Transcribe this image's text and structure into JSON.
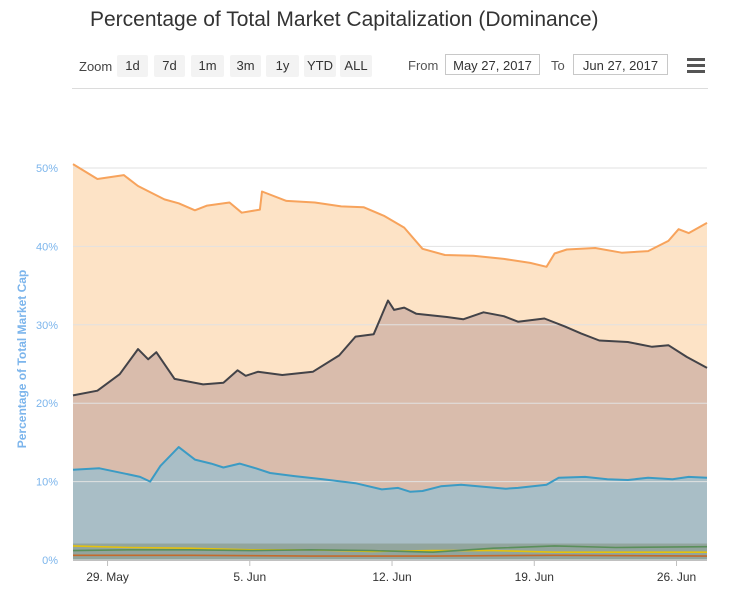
{
  "title": "Percentage of Total Market Capitalization (Dominance)",
  "toolbar": {
    "zoom_label": "Zoom",
    "zoom_buttons": [
      "1d",
      "7d",
      "1m",
      "3m",
      "1y",
      "YTD",
      "ALL"
    ],
    "from_label": "From",
    "from_value": "May 27, 2017",
    "to_label": "To",
    "to_value": "Jun 27, 2017",
    "menu_icon": "hamburger-menu-icon"
  },
  "chart_data": {
    "type": "area",
    "ylabel": "Percentage of Total Market Cap",
    "ylim": [
      0,
      50
    ],
    "y_ticks": [
      "0%",
      "10%",
      "20%",
      "30%",
      "40%",
      "50%"
    ],
    "x_tick_labels": [
      "29. May",
      "5. Jun",
      "12. Jun",
      "19. Jun",
      "26. Jun"
    ],
    "x_ticks": [
      29,
      36,
      43,
      50,
      57
    ],
    "x_range": [
      27.3,
      58.5
    ],
    "grid": true,
    "series_colors": [
      "#f7a35c",
      "#434348",
      "#3b9bc4",
      "#e4c20c",
      "#5a8f5a",
      "#c46a2c"
    ],
    "series": [
      {
        "color": "#f7a35c",
        "fill": "#fde3c6",
        "x": [
          27.3,
          28.5,
          29.8,
          30.5,
          31.8,
          32.5,
          33.3,
          33.9,
          35,
          35.6,
          36.5,
          36.6,
          37.8,
          39.2,
          40.5,
          41.6,
          42.6,
          43.2,
          43.6,
          44.5,
          45.6,
          47,
          48.5,
          49.8,
          50.6,
          51,
          51.6,
          53,
          54.3,
          55.6,
          56.6,
          57.1,
          57.6,
          58.5
        ],
        "values": [
          50.5,
          48.6,
          49.1,
          47.7,
          46,
          45.5,
          44.6,
          45.2,
          45.6,
          44.3,
          44.7,
          47,
          45.8,
          45.6,
          45.1,
          45,
          43.9,
          43,
          42.4,
          39.7,
          38.9,
          38.8,
          38.4,
          37.9,
          37.4,
          39.1,
          39.6,
          39.8,
          39.2,
          39.4,
          40.7,
          42.2,
          41.7,
          43
        ]
      },
      {
        "color": "#434348",
        "fill": "#d9bcac",
        "x": [
          27.3,
          28.5,
          29.6,
          30.5,
          31,
          31.4,
          32.3,
          33.7,
          34.7,
          35.4,
          35.8,
          36.4,
          37.6,
          39.1,
          40.4,
          41.2,
          42.1,
          42.8,
          43.1,
          43.6,
          44.2,
          45.7,
          46.5,
          47.5,
          48.5,
          49.2,
          50.5,
          51.5,
          52.3,
          53.2,
          54.6,
          55.8,
          56.6,
          57.5,
          58.5
        ],
        "values": [
          21,
          21.6,
          23.7,
          26.9,
          25.6,
          26.5,
          23.1,
          22.4,
          22.6,
          24.2,
          23.5,
          24,
          23.6,
          24,
          26.1,
          28.5,
          28.8,
          33.1,
          31.9,
          32.2,
          31.4,
          31,
          30.7,
          31.6,
          31.1,
          30.4,
          30.8,
          29.8,
          28.9,
          28,
          27.8,
          27.2,
          27.4,
          25.9,
          24.5
        ]
      },
      {
        "color": "#3b9bc4",
        "fill": "#a9bec6",
        "x": [
          27.3,
          28.6,
          29.9,
          30.6,
          31.1,
          31.6,
          32.5,
          33.3,
          34.1,
          34.7,
          35.5,
          36.3,
          37,
          38.2,
          39.6,
          41.2,
          42.5,
          43.3,
          43.9,
          44.5,
          45.4,
          46.4,
          47.7,
          48.6,
          49.2,
          50.6,
          51.2,
          52.5,
          53.6,
          54.6,
          55.6,
          56.8,
          57.6,
          58.5
        ],
        "values": [
          11.5,
          11.7,
          11,
          10.6,
          10,
          12,
          14.4,
          12.8,
          12.3,
          11.8,
          12.3,
          11.7,
          11.1,
          10.7,
          10.3,
          9.8,
          9,
          9.2,
          8.7,
          8.8,
          9.4,
          9.6,
          9.3,
          9.1,
          9.2,
          9.6,
          10.5,
          10.6,
          10.3,
          10.2,
          10.5,
          10.3,
          10.6,
          10.5
        ]
      },
      {
        "color": "#e4c20c",
        "x": [
          27.3,
          30,
          33,
          36,
          39,
          42,
          45,
          48,
          51,
          54,
          58.5
        ],
        "values": [
          1.8,
          1.6,
          1.5,
          1.3,
          1.3,
          1.1,
          1.2,
          1.2,
          1,
          1,
          1
        ]
      },
      {
        "color": "#5a8f5a",
        "x": [
          27.3,
          30,
          33,
          36,
          39,
          42,
          45,
          48,
          51,
          54,
          58.5
        ],
        "values": [
          1.2,
          1.3,
          1.3,
          1.2,
          1.3,
          1.2,
          1,
          1.5,
          1.8,
          1.6,
          1.7
        ]
      },
      {
        "color": "#c46a2c",
        "x": [
          27.3,
          33,
          39,
          45,
          51,
          58.5
        ],
        "values": [
          0.6,
          0.6,
          0.5,
          0.5,
          0.6,
          0.5
        ]
      }
    ]
  }
}
